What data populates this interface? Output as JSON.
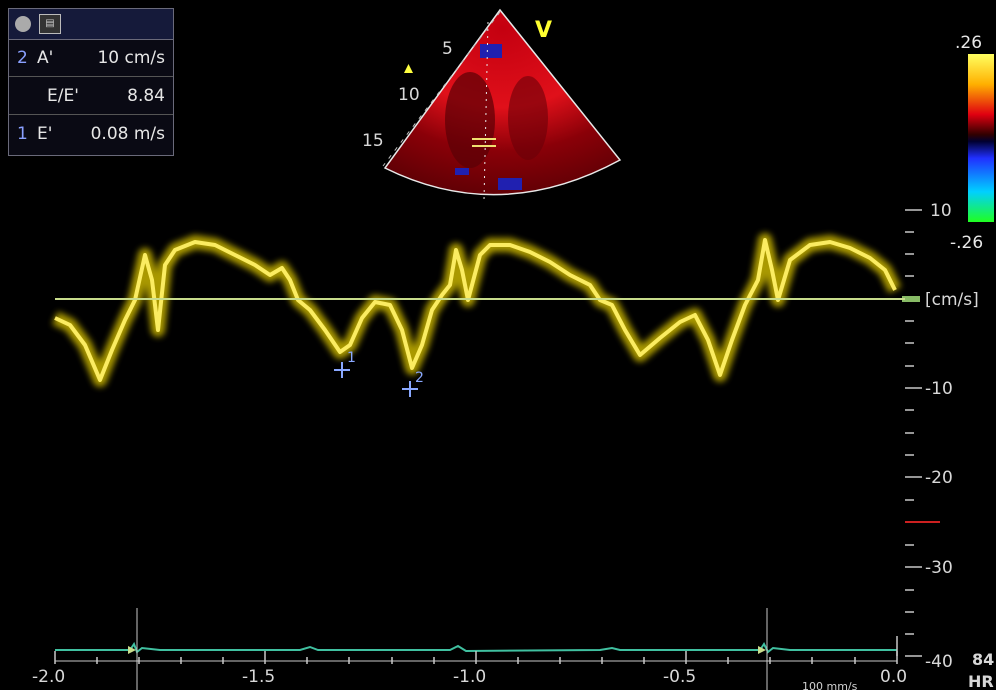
{
  "measurements": {
    "rows": [
      {
        "index": "2",
        "label": "A'",
        "value": "10 cm/s"
      },
      {
        "index": "",
        "label": "E/E'",
        "value": "8.84"
      },
      {
        "index": "1",
        "label": "E'",
        "value": "0.08 m/s"
      }
    ]
  },
  "sector": {
    "depth_marks": [
      "5",
      "10",
      "15"
    ],
    "orientation_label": "V"
  },
  "color_scale": {
    "top_label": ".26",
    "bottom_label": "-.26"
  },
  "velocity_axis": {
    "unit": "[cm/s]",
    "tick_labels": [
      "10",
      "-10",
      "-20",
      "-30",
      "-40"
    ]
  },
  "time_axis": {
    "tick_labels": [
      "-2.0",
      "-1.5",
      "-1.0",
      "-0.5",
      "0.0"
    ],
    "sweep_speed": "100 mm/s"
  },
  "cursors": [
    {
      "label": "1"
    },
    {
      "label": "2"
    }
  ],
  "heart_rate": {
    "value": "84",
    "label": "HR"
  }
}
